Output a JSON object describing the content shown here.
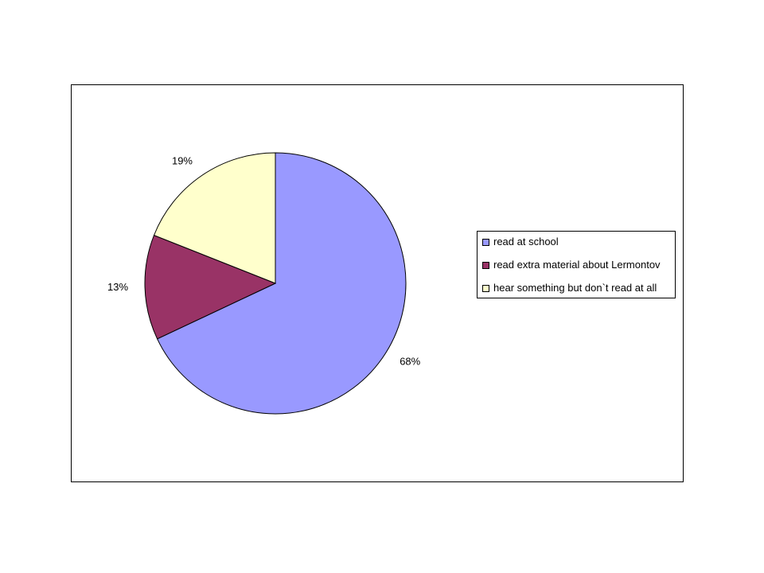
{
  "chart_data": {
    "type": "pie",
    "categories": [
      "read at school",
      "read extra material about Lermontov",
      "hear something but don`t read at all"
    ],
    "values": [
      68,
      13,
      19
    ],
    "value_labels": [
      "68%",
      "13%",
      "19%"
    ],
    "colors": [
      "#9999ff",
      "#993366",
      "#ffffcc"
    ]
  }
}
